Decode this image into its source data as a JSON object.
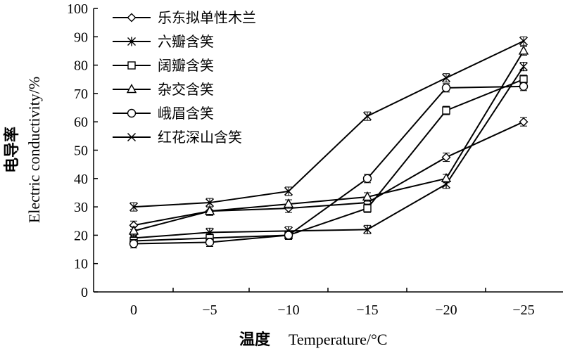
{
  "chart_data": {
    "type": "line",
    "categories": [
      "0",
      "−5",
      "−10",
      "−15",
      "−20",
      "−25"
    ],
    "x": [
      0,
      -5,
      -10,
      -15,
      -20,
      -25
    ],
    "ylim": [
      0,
      100
    ],
    "yticks": [
      "0",
      "10",
      "20",
      "30",
      "40",
      "50",
      "60",
      "70",
      "80",
      "90",
      "100"
    ],
    "xlabel_cn": "温度",
    "xlabel_en": "Temperature/°C",
    "ylabel_cn": "电导率",
    "ylabel_en": "Electric conductivity/%",
    "grid": false,
    "legend_position": "top-left",
    "series": [
      {
        "name": "乐东拟单性木兰",
        "marker": "diamond",
        "values": [
          23.5,
          28.5,
          29.5,
          31.5,
          47.5,
          60
        ]
      },
      {
        "name": "六瓣含笑",
        "marker": "asterisk",
        "values": [
          19,
          21,
          21.5,
          22,
          38,
          79.5
        ]
      },
      {
        "name": "阔瓣含笑",
        "marker": "square",
        "values": [
          18,
          19,
          20,
          29.5,
          64,
          75
        ]
      },
      {
        "name": "杂交含笑",
        "marker": "triangle",
        "values": [
          21.5,
          28.5,
          31,
          33.5,
          40,
          85
        ]
      },
      {
        "name": "峨眉含笑",
        "marker": "circle",
        "values": [
          17,
          17.5,
          20,
          40,
          72,
          72.5
        ]
      },
      {
        "name": "红花深山含笑",
        "marker": "x",
        "values": [
          30,
          31.5,
          35.5,
          62,
          75.5,
          88.5
        ]
      }
    ]
  }
}
